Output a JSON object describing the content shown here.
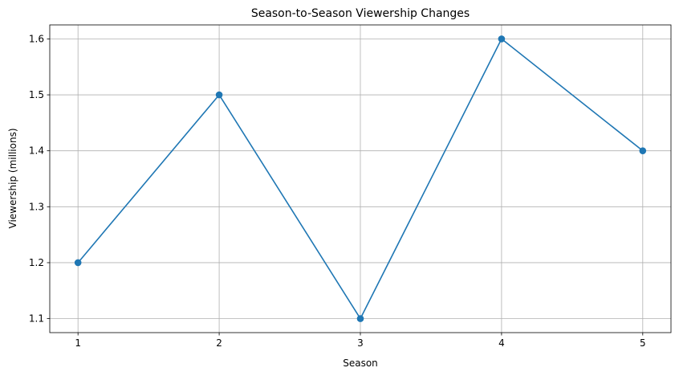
{
  "chart_data": {
    "type": "line",
    "title": "Season-to-Season Viewership Changes",
    "xlabel": "Season",
    "ylabel": "Viewership (millions)",
    "x": [
      1,
      2,
      3,
      4,
      5
    ],
    "series": [
      {
        "name": "",
        "values": [
          1.2,
          1.5,
          1.1,
          1.6,
          1.4
        ],
        "color": "#1f77b4",
        "marker": "circle"
      }
    ],
    "xticks": [
      "1",
      "2",
      "3",
      "4",
      "5"
    ],
    "yticks": [
      "1.1",
      "1.2",
      "1.3",
      "1.4",
      "1.5",
      "1.6"
    ],
    "xlim": [
      0.8,
      5.2
    ],
    "ylim": [
      1.075,
      1.625
    ],
    "grid": true,
    "legend": "none"
  }
}
